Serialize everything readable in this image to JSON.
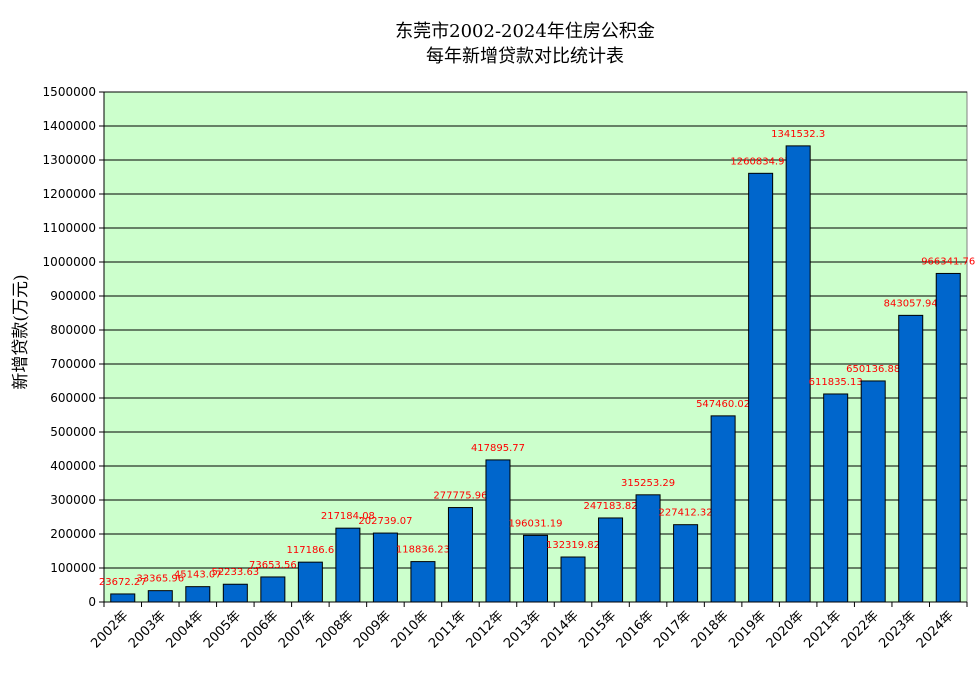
{
  "chart_data": {
    "type": "bar",
    "title": [
      "东莞市2002-2024年住房公积金",
      "每年新增贷款对比统计表"
    ],
    "ylabel": "新增贷款(万元)",
    "xlabel": "",
    "ylim": [
      0,
      1500000
    ],
    "yticks": [
      0,
      100000,
      200000,
      300000,
      400000,
      500000,
      600000,
      700000,
      800000,
      900000,
      1000000,
      1100000,
      1200000,
      1300000,
      1400000,
      1500000
    ],
    "ytick_labels": [
      "0",
      "100000",
      "200000",
      "300000",
      "400000",
      "500000",
      "600000",
      "700000",
      "800000",
      "900000",
      "1000000",
      "1100000",
      "1200000",
      "1300000",
      "1400000",
      "1500000"
    ],
    "grid": true,
    "legend": "none",
    "categories": [
      "2002年",
      "2003年",
      "2004年",
      "2005年",
      "2006年",
      "2007年",
      "2008年",
      "2009年",
      "2010年",
      "2011年",
      "2012年",
      "2013年",
      "2014年",
      "2015年",
      "2016年",
      "2017年",
      "2018年",
      "2019年",
      "2020年",
      "2021年",
      "2022年",
      "2023年",
      "2024年"
    ],
    "values": [
      23672.27,
      33365.96,
      45143.07,
      52233.63,
      73653.56,
      117186.6,
      217184.08,
      202739.07,
      118836.23,
      277775.96,
      417895.77,
      196031.19,
      132319.82,
      247183.82,
      315253.29,
      227412.32,
      547460.02,
      1260834.97,
      1341532.3,
      611835.13,
      650136.88,
      843057.94,
      966341.76
    ],
    "data_labels": [
      "23672.27",
      "33365.96",
      "45143.07",
      "52233.63",
      "73653.56",
      "117186.6",
      "217184.08",
      "202739.07",
      "118836.23",
      "277775.96",
      "417895.77",
      "196031.19",
      "132319.82",
      "247183.82",
      "315253.29",
      "227412.32",
      "547460.02",
      "1260834.97",
      "1341532.3",
      "611835.13",
      "650136.88",
      "843057.94",
      "966341.76"
    ],
    "colors": {
      "bar": "#0066cc",
      "plot_bg": "#ccffcc",
      "label": "#ff0000",
      "grid": "#000000"
    }
  }
}
